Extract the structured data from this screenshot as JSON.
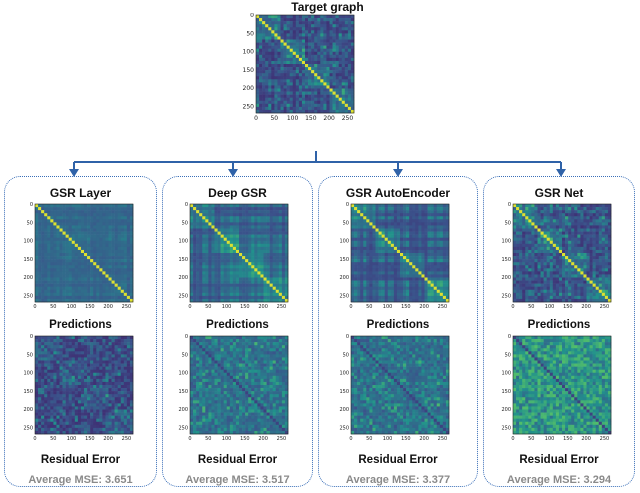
{
  "target": {
    "title": "Target graph",
    "y_ticks": [
      "0",
      "50",
      "100",
      "150",
      "200",
      "250"
    ],
    "x_ticks": [
      "0",
      "50",
      "100",
      "150",
      "200",
      "250"
    ]
  },
  "panels": [
    {
      "title": "GSR Layer",
      "predictions_label": "Predictions",
      "residual_label": "Residual Error",
      "mse_label": "Average MSE: 3.651"
    },
    {
      "title": "Deep GSR",
      "predictions_label": "Predictions",
      "residual_label": "Residual Error",
      "mse_label": "Average MSE: 3.517"
    },
    {
      "title": "GSR AutoEncoder",
      "predictions_label": "Predictions",
      "residual_label": "Residual Error",
      "mse_label": "Average MSE: 3.377"
    },
    {
      "title": "GSR Net",
      "predictions_label": "Predictions",
      "residual_label": "Residual Error",
      "mse_label": "Average MSE: 3.294"
    }
  ],
  "colors": {
    "arrow": "#2f62a8",
    "panel_border": "#3a6fb8",
    "matrix_low": "#3b1c6e",
    "matrix_mid": "#2c7f8e",
    "matrix_high": "#f2e52a"
  }
}
